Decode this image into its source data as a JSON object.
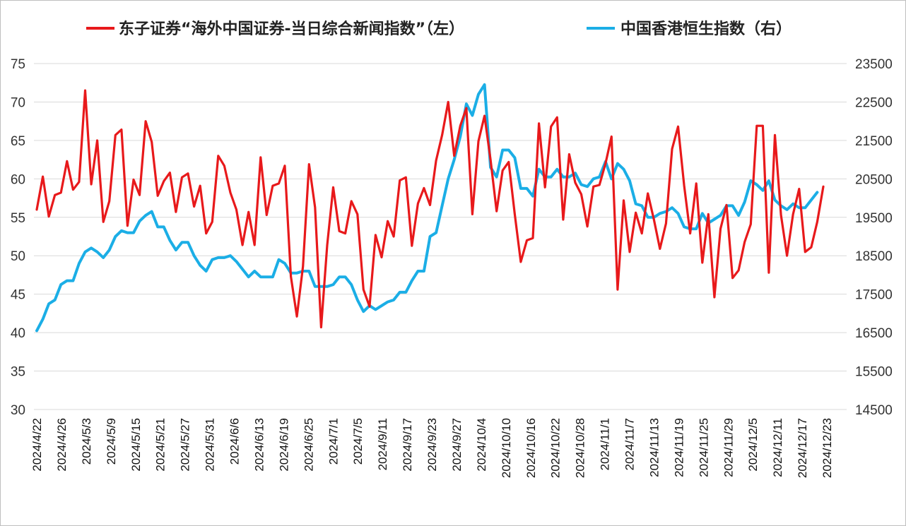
{
  "chart_data": {
    "type": "line",
    "legend_position": "top",
    "grid": true,
    "legend": [
      {
        "name": "东子证券“海外中国证券-当日综合新闻指数”（左）",
        "color": "#e8191b",
        "axis": "left"
      },
      {
        "name": "中国香港恒生指数（右）",
        "color": "#1baee6",
        "axis": "right"
      }
    ],
    "y_left": {
      "min": 30,
      "max": 75,
      "ticks": [
        "30",
        "35",
        "40",
        "45",
        "50",
        "55",
        "60",
        "65",
        "70",
        "75"
      ]
    },
    "y_right": {
      "min": 14500,
      "max": 23500,
      "ticks": [
        "14500",
        "15500",
        "16500",
        "17500",
        "18500",
        "19500",
        "20500",
        "21500",
        "22500",
        "23500"
      ]
    },
    "x_tick_labels": [
      "2024/4/22",
      "2024/4/26",
      "2024/5/3",
      "2024/5/9",
      "2024/5/15",
      "2024/5/21",
      "2024/5/27",
      "2024/5/31",
      "2024/6/6",
      "2024/6/13",
      "2024/6/19",
      "2024/6/25",
      "2024/7/1",
      "2024/7/5",
      "2024/9/11",
      "2024/9/17",
      "2024/9/23",
      "2024/9/27",
      "2024/10/4",
      "2024/10/10",
      "2024/10/16",
      "2024/10/22",
      "2024/10/28",
      "2024/11/1",
      "2024/11/7",
      "2024/11/13",
      "2024/11/19",
      "2024/11/25",
      "2024/11/29",
      "2024/12/5",
      "2024/12/11",
      "2024/12/17",
      "2024/12/23"
    ],
    "series": [
      {
        "name": "东子证券“海外中国证券-当日综合新闻指数”（左）",
        "color": "#e8191b",
        "axis": "left",
        "values": [
          56.0,
          60.3,
          55.1,
          57.9,
          58.2,
          62.3,
          58.6,
          59.6,
          71.5,
          59.3,
          65.0,
          54.4,
          57.1,
          65.7,
          66.4,
          53.9,
          59.9,
          57.9,
          67.5,
          64.8,
          57.8,
          59.7,
          60.8,
          55.7,
          60.2,
          60.7,
          56.4,
          59.1,
          52.9,
          54.4,
          63.0,
          61.7,
          58.2,
          56.0,
          51.4,
          55.7,
          51.4,
          62.8,
          55.3,
          59.1,
          59.4,
          61.7,
          47.3,
          42.1,
          48.6,
          61.9,
          56.3,
          40.7,
          51.4,
          58.9,
          53.2,
          52.9,
          57.1,
          55.4,
          45.6,
          43.4,
          52.7,
          49.8,
          54.5,
          52.5,
          59.8,
          60.2,
          51.3,
          56.8,
          58.8,
          56.6,
          62.4,
          65.7,
          70.0,
          63.0,
          66.9,
          69.2,
          55.4,
          64.9,
          68.2,
          62.5,
          55.8,
          61.1,
          62.2,
          55.4,
          49.2,
          52.0,
          52.3,
          67.2,
          58.9,
          66.8,
          68.0,
          54.7,
          63.2,
          59.5,
          58.0,
          53.8,
          59.0,
          59.2,
          62.0,
          65.5,
          45.6,
          57.2,
          50.5,
          55.6,
          52.9,
          58.1,
          54.7,
          50.9,
          54.2,
          63.9,
          66.8,
          59.1,
          52.9,
          59.4,
          49.1,
          55.4,
          44.6,
          53.5,
          56.6,
          47.1,
          48.1,
          51.8,
          54.1,
          66.9,
          66.9,
          47.8,
          65.7,
          55.3,
          50.0,
          55.4,
          58.7,
          50.5,
          51.1,
          54.4,
          59.0
        ]
      },
      {
        "name": "中国香港恒生指数（右）",
        "color": "#1baee6",
        "axis": "right",
        "values": [
          16550,
          16850,
          17250,
          17350,
          17750,
          17850,
          17850,
          18300,
          18600,
          18700,
          18600,
          18450,
          18650,
          19000,
          19150,
          19100,
          19100,
          19400,
          19550,
          19650,
          19250,
          19250,
          18900,
          18650,
          18850,
          18850,
          18500,
          18250,
          18100,
          18400,
          18450,
          18450,
          18500,
          18350,
          18150,
          17950,
          18100,
          17950,
          17950,
          17950,
          18400,
          18300,
          18050,
          18050,
          18100,
          18100,
          17700,
          17700,
          17700,
          17750,
          17950,
          17950,
          17750,
          17350,
          17050,
          17200,
          17100,
          17200,
          17300,
          17350,
          17550,
          17550,
          17850,
          18100,
          18100,
          19000,
          19100,
          19800,
          20500,
          21000,
          21600,
          22450,
          22150,
          22700,
          22950,
          20800,
          20550,
          21250,
          21250,
          21050,
          20250,
          20250,
          20050,
          20750,
          20550,
          20550,
          20750,
          20550,
          20550,
          20650,
          20350,
          20300,
          20500,
          20550,
          20950,
          20500,
          20900,
          20750,
          20450,
          19850,
          19800,
          19500,
          19500,
          19600,
          19650,
          19750,
          19600,
          19250,
          19200,
          19200,
          19600,
          19350,
          19450,
          19550,
          19800,
          19800,
          19550,
          19900,
          20450,
          20350,
          20200,
          20450,
          19950,
          19800,
          19700,
          19850,
          19750,
          19750,
          19950,
          20150
        ]
      }
    ]
  }
}
